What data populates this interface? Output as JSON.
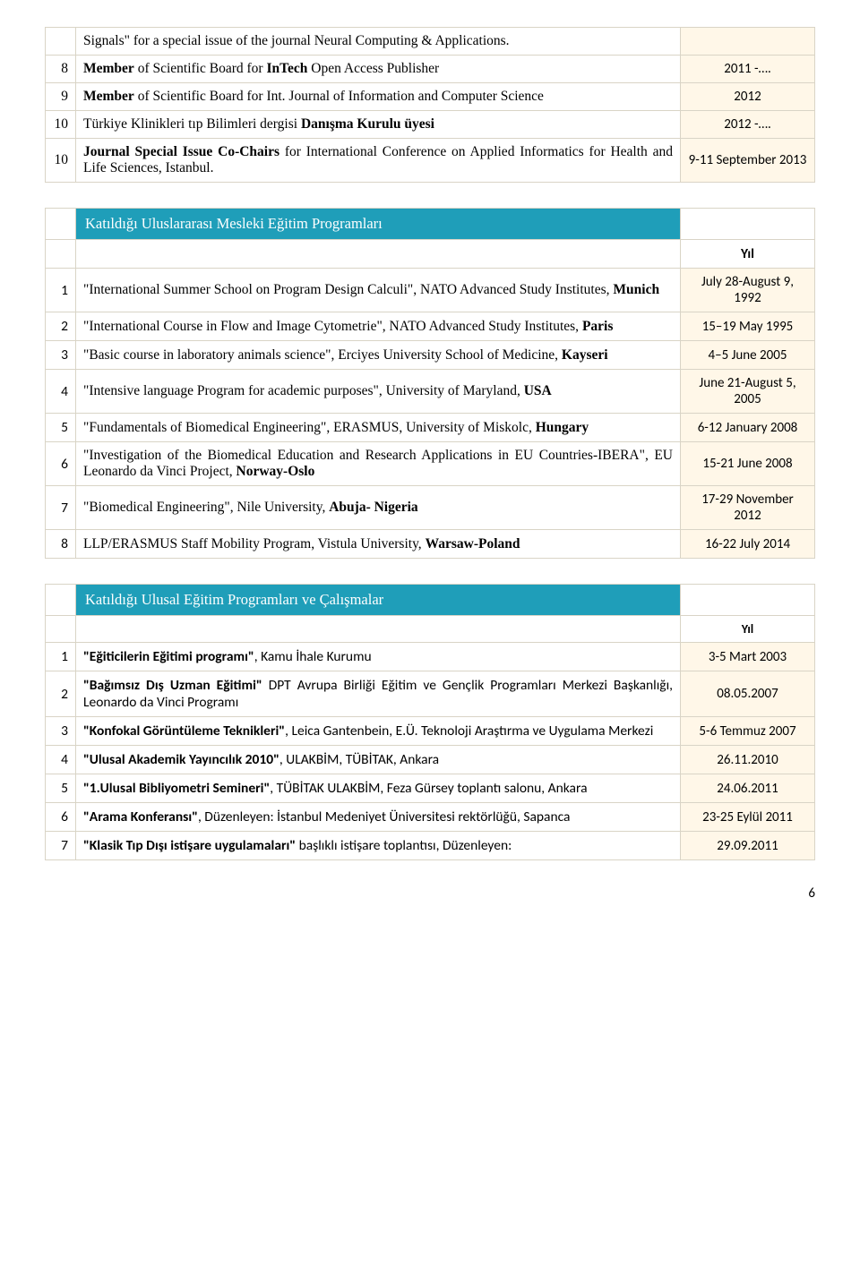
{
  "topTable": {
    "rows": [
      {
        "num": "",
        "content": "Signals\" for a special issue of the journal Neural Computing & Applications.",
        "date": ""
      },
      {
        "num": "8",
        "content_html": "<b>Member</b> of Scientific Board for <b>InTech</b> Open Access Publisher",
        "date": "2011 -…."
      },
      {
        "num": "9",
        "content_html": "<b>Member</b> of Scientific Board for Int. Journal of Information and Computer Science",
        "date": "2012"
      },
      {
        "num": "10",
        "content_html": "Türkiye Klinikleri tıp Bilimleri dergisi <b>Danışma Kurulu üyesi</b>",
        "date": "2012 -…."
      },
      {
        "num": "10",
        "content_html": "<b>Journal Special Issue Co-Chairs</b> for International Conference on Applied Informatics for Health and Life Sciences, Istanbul.",
        "date": "9-11 September 2013"
      }
    ]
  },
  "intlTable": {
    "header": "Katıldığı Uluslararası Mesleki Eğitim Programları",
    "yearLabel": "Yıl",
    "rows": [
      {
        "num": "1",
        "content_html": "\"International Summer School on Program Design Calculi\",  NATO Advanced Study Institutes, <b>Munich</b>",
        "date": "July 28-August 9, 1992"
      },
      {
        "num": "2",
        "content_html": "\"International Course in Flow and Image Cytometrie\",  NATO Advanced Study Institutes, <b>Paris</b>",
        "date": "15–19 May 1995"
      },
      {
        "num": "3",
        "content_html": "\"Basic course in laboratory animals science\",  Erciyes University School of Medicine, <b>Kayseri</b>",
        "date": "4–5 June 2005"
      },
      {
        "num": "4",
        "content_html": "\"Intensive language Program for academic purposes\", University of Maryland, <b>USA</b>",
        "date": "June 21-August 5, 2005"
      },
      {
        "num": "5",
        "content_html": "\"Fundamentals of Biomedical Engineering\", ERASMUS, University of Miskolc, <b>Hungary</b>",
        "date": "6-12 January 2008"
      },
      {
        "num": "6",
        "content_html": "\"Investigation of the Biomedical Education and Research Applications in EU Countries-IBERA\",   EU Leonardo da Vinci Project, <b>Norway-Oslo</b>",
        "date": "15-21 June 2008"
      },
      {
        "num": "7",
        "content_html": "\"Biomedical Engineering\",   Nile University, <b>Abuja- Nigeria</b>",
        "date": "17-29 November 2012"
      },
      {
        "num": "8",
        "content_html": "LLP/ERASMUS Staff Mobility Program, Vistula University, <b>Warsaw-Poland</b>",
        "date": "16-22 July 2014"
      }
    ]
  },
  "natTable": {
    "header": "Katıldığı Ulusal Eğitim Programları ve Çalışmalar",
    "yearLabel": "Yıl",
    "rows": [
      {
        "num": "1",
        "content_html": "<span class=\"sans-bold\">\"Eğiticilerin Eğitimi programı\"</span><span style=\"font-family:Calibri,Arial,sans-serif;\">, Kamu İhale Kurumu</span>",
        "date": "3-5 Mart 2003"
      },
      {
        "num": "2",
        "content_html": "<span class=\"sans-bold\">\"Bağımsız Dış Uzman Eğitimi\"</span><span style=\"font-family:Calibri,Arial,sans-serif;\"> DPT Avrupa Birliği Eğitim ve Gençlik Programları Merkezi Başkanlığı, Leonardo da Vinci Programı</span>",
        "date": "08.05.2007"
      },
      {
        "num": "3",
        "content_html": "<span class=\"sans-bold\">\"Konfokal Görüntüleme Teknikleri\"</span><span style=\"font-family:Calibri,Arial,sans-serif;\">, Leica Gantenbein, E.Ü. Teknoloji Araştırma ve Uygulama Merkezi</span>",
        "date": "5-6 Temmuz 2007"
      },
      {
        "num": "4",
        "content_html": "<span class=\"sans-bold\">\"Ulusal Akademik Yayıncılık 2010\"</span><span style=\"font-family:Calibri,Arial,sans-serif;\">, ULAKBİM, TÜBİTAK, Ankara</span>",
        "date": "26.11.2010"
      },
      {
        "num": "5",
        "content_html": "<span class=\"sans-bold\">\"1.Ulusal Bibliyometri Semineri\"</span><span style=\"font-family:Calibri,Arial,sans-serif;\">,   TÜBİTAK ULAKBİM, Feza Gürsey toplantı salonu, Ankara</span>",
        "date": "24.06.2011"
      },
      {
        "num": "6",
        "content_html": "<span class=\"sans-bold\">\"Arama Konferansı\"</span><span style=\"font-family:Calibri,Arial,sans-serif;\">, Düzenleyen: İstanbul Medeniyet Üniversitesi rektörlüğü, Sapanca</span>",
        "date": "23-25 Eylül 2011"
      },
      {
        "num": "7",
        "content_html": "<span class=\"sans-bold\">\"Klasik Tıp Dışı istişare uygulamaları\"</span><span style=\"font-family:Calibri,Arial,sans-serif;\"> başlıklı istişare toplantısı, Düzenleyen:</span>",
        "date": "29.09.2011"
      }
    ]
  },
  "pageNumber": "6"
}
